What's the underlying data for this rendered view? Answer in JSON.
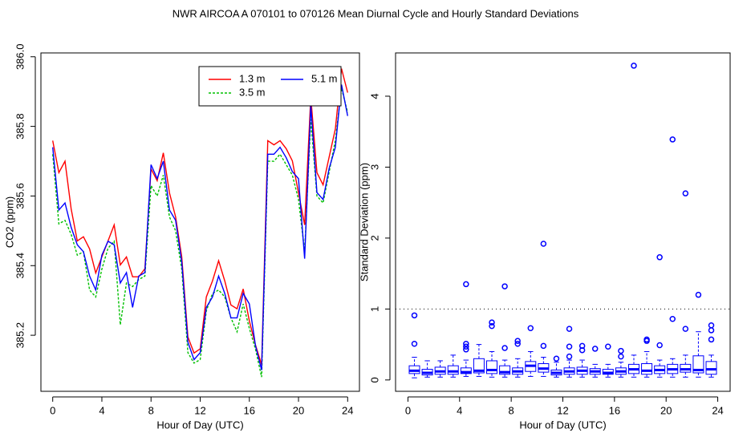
{
  "title": "NWR   AIRCOA A   070101 to 070126   Mean Diurnal Cycle and Hourly Standard Deviations",
  "chart_data": [
    {
      "type": "line",
      "xlabel": "Hour of Day (UTC)",
      "ylabel": "CO2 (ppm)",
      "xlim": [
        -0.96,
        24.96
      ],
      "ylim": [
        385.039,
        386.011
      ],
      "xticks": [
        0,
        4,
        8,
        12,
        16,
        20,
        24
      ],
      "yticks": [
        385.2,
        385.4,
        385.6,
        385.8,
        {
          "value": 386,
          "label": "386.0"
        }
      ],
      "legend": "topright",
      "x": [
        0,
        0.5,
        1,
        1.5,
        2,
        2.5,
        3,
        3.5,
        4,
        4.5,
        5,
        5.5,
        6,
        6.5,
        7,
        7.5,
        8,
        8.5,
        9,
        9.5,
        10,
        10.5,
        11,
        11.5,
        12,
        12.5,
        13,
        13.5,
        14,
        14.5,
        15,
        15.5,
        16,
        16.5,
        17,
        17.5,
        18,
        18.5,
        19,
        19.5,
        20,
        20.5,
        21,
        21.5,
        22,
        22.5,
        23,
        23.5,
        24
      ],
      "series": [
        {
          "name": "1.3 m",
          "color": "#ff0000",
          "linestyle": "solid",
          "values": [
            385.759,
            385.667,
            385.7,
            385.563,
            385.471,
            385.483,
            385.448,
            385.379,
            385.425,
            385.471,
            385.517,
            385.402,
            385.425,
            385.368,
            385.368,
            385.391,
            385.678,
            385.644,
            385.724,
            385.609,
            385.54,
            385.425,
            385.195,
            385.149,
            385.161,
            385.31,
            385.356,
            385.414,
            385.356,
            385.287,
            385.276,
            385.333,
            385.241,
            385.172,
            385.115,
            385.759,
            385.747,
            385.759,
            385.736,
            385.701,
            385.609,
            385.517,
            385.885,
            385.667,
            385.632,
            385.713,
            385.793,
            385.966,
            385.897
          ]
        },
        {
          "name": "3.5 m",
          "color": "#00c000",
          "linestyle": "dashed",
          "values": [
            385.72,
            385.52,
            385.53,
            385.49,
            385.43,
            385.44,
            385.33,
            385.31,
            385.39,
            385.45,
            385.47,
            385.23,
            385.35,
            385.34,
            385.36,
            385.37,
            385.63,
            385.6,
            385.66,
            385.54,
            385.5,
            385.39,
            385.15,
            385.12,
            385.13,
            385.27,
            385.32,
            385.33,
            385.31,
            385.25,
            385.21,
            385.29,
            385.22,
            385.16,
            385.08,
            385.7,
            385.7,
            385.72,
            385.69,
            385.66,
            385.59,
            385.44,
            385.82,
            385.6,
            385.58,
            385.67,
            385.76,
            385.91,
            385.84
          ]
        },
        {
          "name": "5.1 m",
          "color": "#0000ff",
          "linestyle": "solid",
          "values": [
            385.74,
            385.56,
            385.58,
            385.51,
            385.46,
            385.44,
            385.37,
            385.33,
            385.43,
            385.47,
            385.46,
            385.35,
            385.38,
            385.28,
            385.37,
            385.38,
            385.69,
            385.65,
            385.7,
            385.56,
            385.53,
            385.41,
            385.18,
            385.13,
            385.15,
            385.28,
            385.31,
            385.37,
            385.32,
            385.25,
            385.25,
            385.32,
            385.29,
            385.17,
            385.1,
            385.72,
            385.72,
            385.74,
            385.71,
            385.67,
            385.65,
            385.42,
            385.86,
            385.61,
            385.59,
            385.68,
            385.74,
            385.92,
            385.83
          ]
        }
      ]
    },
    {
      "type": "box",
      "xlabel": "Hour of Day (UTC)",
      "ylabel": "Standard Deviation (ppm)",
      "xlim": [
        -0.96,
        24.96
      ],
      "ylim": [
        -0.16,
        4.61
      ],
      "xticks": [
        0,
        4,
        8,
        12,
        16,
        20,
        24
      ],
      "yticks": [
        0,
        1,
        2,
        3,
        4
      ],
      "color": "#0000ff",
      "hline": 1,
      "boxes": [
        {
          "x": 0.5,
          "whislo": 0.03,
          "q1": 0.09,
          "med": 0.13,
          "q3": 0.2,
          "whishi": 0.32,
          "fliers": [
            0.51,
            0.91
          ]
        },
        {
          "x": 1.5,
          "whislo": 0.04,
          "q1": 0.07,
          "med": 0.1,
          "q3": 0.15,
          "whishi": 0.27
        },
        {
          "x": 2.5,
          "whislo": 0.04,
          "q1": 0.08,
          "med": 0.12,
          "q3": 0.18,
          "whishi": 0.27
        },
        {
          "x": 3.5,
          "whislo": 0.04,
          "q1": 0.08,
          "med": 0.12,
          "q3": 0.2,
          "whishi": 0.35
        },
        {
          "x": 4.5,
          "whislo": 0.05,
          "q1": 0.09,
          "med": 0.11,
          "q3": 0.17,
          "whishi": 0.28,
          "fliers": [
            0.43,
            0.47,
            0.51,
            1.35
          ]
        },
        {
          "x": 5.5,
          "whislo": 0.05,
          "q1": 0.1,
          "med": 0.13,
          "q3": 0.3,
          "whishi": 0.5
        },
        {
          "x": 6.5,
          "whislo": 0.04,
          "q1": 0.09,
          "med": 0.14,
          "q3": 0.27,
          "whishi": 0.4,
          "fliers": [
            0.76,
            0.81
          ]
        },
        {
          "x": 7.5,
          "whislo": 0.04,
          "q1": 0.08,
          "med": 0.11,
          "q3": 0.2,
          "whishi": 0.28,
          "fliers": [
            0.45,
            1.32
          ]
        },
        {
          "x": 8.5,
          "whislo": 0.04,
          "q1": 0.08,
          "med": 0.12,
          "q3": 0.17,
          "whishi": 0.3,
          "fliers": [
            0.51,
            0.55
          ]
        },
        {
          "x": 9.5,
          "whislo": 0.05,
          "q1": 0.12,
          "med": 0.2,
          "q3": 0.26,
          "whishi": 0.4,
          "fliers": [
            0.73
          ]
        },
        {
          "x": 10.5,
          "whislo": 0.05,
          "q1": 0.11,
          "med": 0.16,
          "q3": 0.23,
          "whishi": 0.32,
          "fliers": [
            0.48,
            1.92
          ]
        },
        {
          "x": 11.5,
          "whislo": 0.04,
          "q1": 0.07,
          "med": 0.1,
          "q3": 0.14,
          "whishi": 0.25,
          "fliers": [
            0.3
          ]
        },
        {
          "x": 12.5,
          "whislo": 0.04,
          "q1": 0.08,
          "med": 0.12,
          "q3": 0.17,
          "whishi": 0.28,
          "fliers": [
            0.33,
            0.47,
            0.72
          ]
        },
        {
          "x": 13.5,
          "whislo": 0.04,
          "q1": 0.08,
          "med": 0.13,
          "q3": 0.18,
          "whishi": 0.28,
          "fliers": [
            0.42,
            0.48
          ]
        },
        {
          "x": 14.5,
          "whislo": 0.04,
          "q1": 0.08,
          "med": 0.12,
          "q3": 0.16,
          "whishi": 0.22,
          "fliers": [
            0.44
          ]
        },
        {
          "x": 15.5,
          "whislo": 0.04,
          "q1": 0.08,
          "med": 0.1,
          "q3": 0.15,
          "whishi": 0.22,
          "fliers": [
            0.47
          ]
        },
        {
          "x": 16.5,
          "whislo": 0.04,
          "q1": 0.08,
          "med": 0.12,
          "q3": 0.17,
          "whishi": 0.25,
          "fliers": [
            0.33,
            0.41
          ]
        },
        {
          "x": 17.5,
          "whislo": 0.04,
          "q1": 0.09,
          "med": 0.15,
          "q3": 0.22,
          "whishi": 0.35,
          "fliers": [
            4.43
          ]
        },
        {
          "x": 18.5,
          "whislo": 0.04,
          "q1": 0.08,
          "med": 0.13,
          "q3": 0.23,
          "whishi": 0.4,
          "fliers": [
            0.55,
            0.57
          ]
        },
        {
          "x": 19.5,
          "whislo": 0.04,
          "q1": 0.09,
          "med": 0.14,
          "q3": 0.2,
          "whishi": 0.28,
          "fliers": [
            0.49,
            1.73
          ]
        },
        {
          "x": 20.5,
          "whislo": 0.04,
          "q1": 0.09,
          "med": 0.15,
          "q3": 0.22,
          "whishi": 0.3,
          "fliers": [
            0.86,
            3.39
          ]
        },
        {
          "x": 21.5,
          "whislo": 0.04,
          "q1": 0.11,
          "med": 0.15,
          "q3": 0.22,
          "whishi": 0.35,
          "fliers": [
            0.72,
            2.63
          ]
        },
        {
          "x": 22.5,
          "whislo": 0.04,
          "q1": 0.1,
          "med": 0.14,
          "q3": 0.34,
          "whishi": 0.68,
          "fliers": [
            1.2
          ]
        },
        {
          "x": 23.5,
          "whislo": 0.04,
          "q1": 0.08,
          "med": 0.15,
          "q3": 0.26,
          "whishi": 0.35,
          "fliers": [
            0.57,
            0.7,
            0.77
          ]
        }
      ]
    }
  ]
}
